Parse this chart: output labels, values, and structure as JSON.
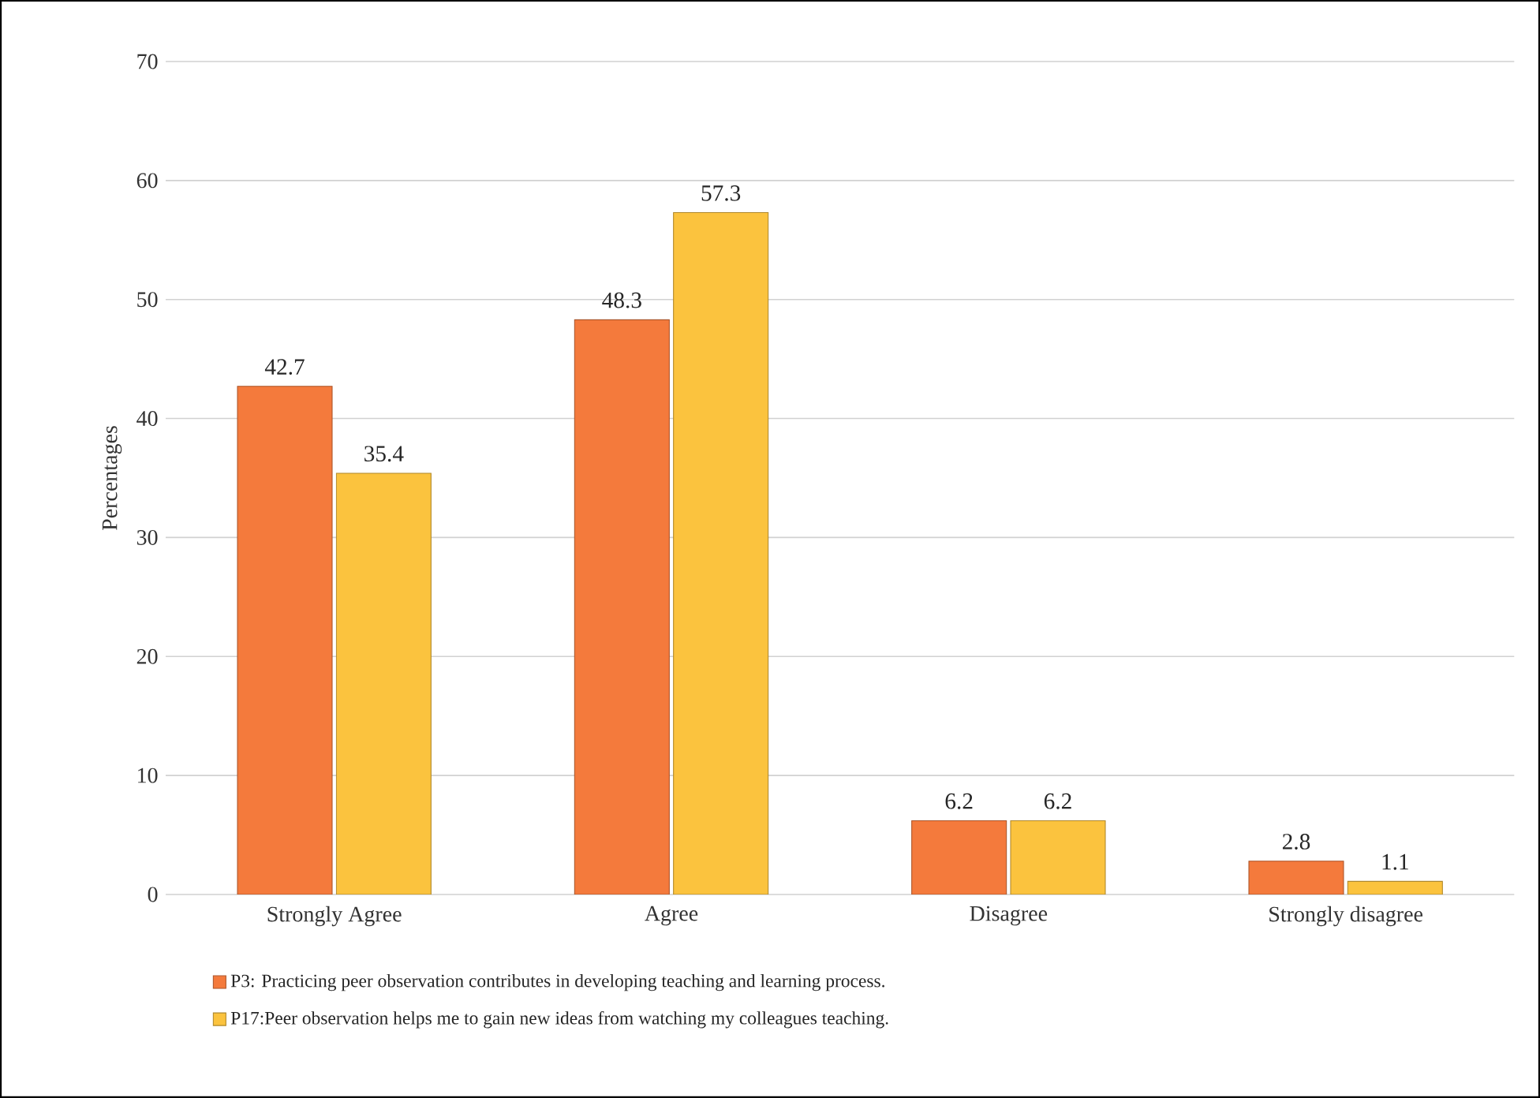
{
  "chart_data": {
    "type": "bar",
    "ylabel": "Percentages",
    "categories": [
      "Strongly Agree",
      "Agree",
      "Disagree",
      "Strongly disagree"
    ],
    "series": [
      {
        "name": "P3: Practicing peer observation contributes in developing teaching and learning process.",
        "color": "#f47a3c",
        "values": [
          42.7,
          48.3,
          6.2,
          2.8
        ],
        "value_labels": [
          "42.7",
          "48.3",
          "6.2",
          "2.8"
        ]
      },
      {
        "name": "P17:Peer observation helps me to gain new ideas from watching my colleagues teaching.",
        "color": "#fbc33e",
        "values": [
          35.4,
          57.3,
          6.2,
          1.1
        ],
        "value_labels": [
          "35.4",
          "57.3",
          "6.2",
          "1.1"
        ]
      }
    ],
    "ylim": [
      0,
      70
    ],
    "yticks": [
      0,
      10,
      20,
      30,
      40,
      50,
      60,
      70
    ],
    "grid": "y",
    "legend": "bottom"
  }
}
